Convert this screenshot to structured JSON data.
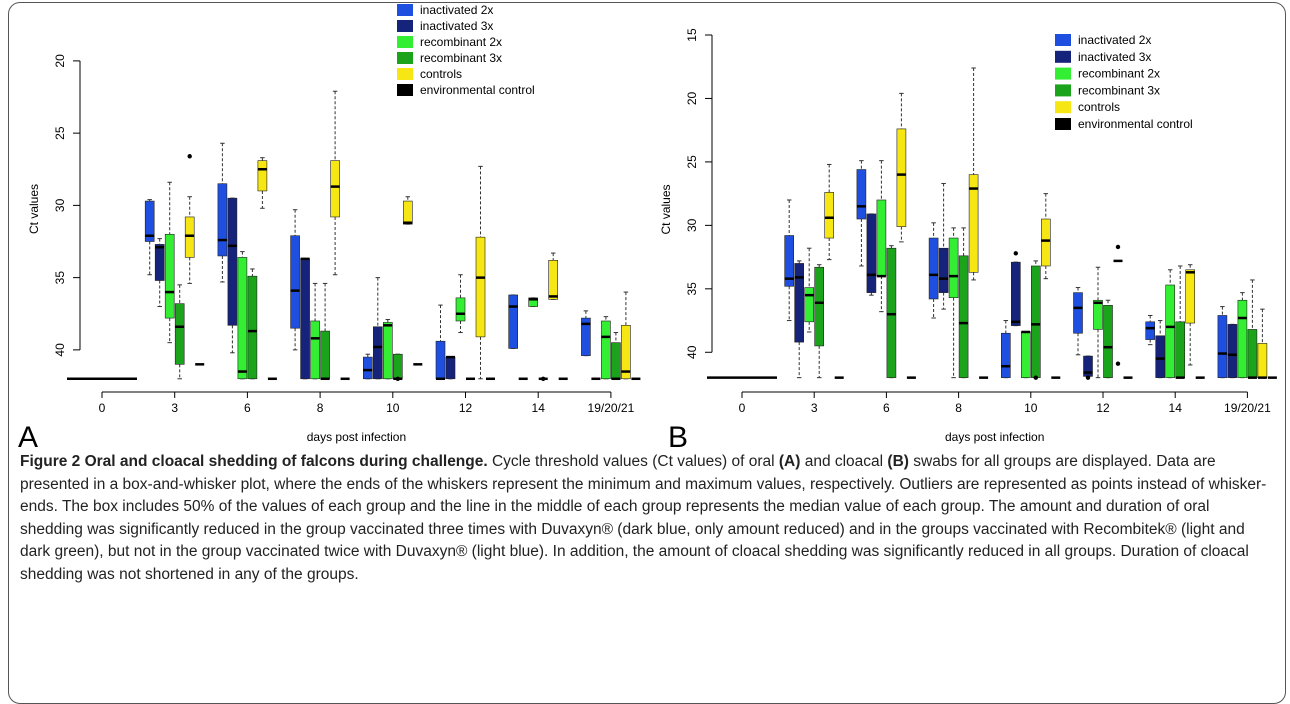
{
  "chart_data": [
    {
      "type": "box",
      "panel_label": "A",
      "xlabel": "days post infection",
      "ylabel": "Ct values",
      "categories": [
        "0",
        "3",
        "6",
        "8",
        "10",
        "12",
        "14",
        "19/20/21"
      ],
      "ylim": [
        42.5,
        18
      ],
      "yticks": [
        20,
        25,
        30,
        35,
        40
      ],
      "series": [
        {
          "name": "inactivated 2x",
          "color": "#1f4fe0",
          "values": [
            null,
            {
              "min": 29.6,
              "q1": 29.7,
              "median": 32.1,
              "q3": 32.5,
              "max": 34.8
            },
            {
              "min": 25.7,
              "q1": 28.5,
              "median": 32.4,
              "q3": 33.5,
              "max": 35.3
            },
            {
              "min": 30.3,
              "q1": 32.1,
              "median": 35.9,
              "q3": 38.5,
              "max": 40.0
            },
            {
              "min": 40.3,
              "q1": 40.5,
              "median": 41.4,
              "q3": 42,
              "max": 42
            },
            {
              "min": 36.9,
              "q1": 39.4,
              "median": 42,
              "q3": 42,
              "max": 42
            },
            {
              "min": 36.2,
              "q1": 36.2,
              "median": 37.0,
              "q3": 39.9,
              "max": 39.9
            },
            {
              "min": 37.3,
              "q1": 37.8,
              "median": 38.2,
              "q3": 40.4,
              "max": 40.4
            }
          ]
        },
        {
          "name": "inactivated 3x",
          "color": "#16237a",
          "values": [
            null,
            {
              "min": 32.3,
              "q1": 32.7,
              "median": 32.9,
              "q3": 35.2,
              "max": 37.0
            },
            {
              "min": 29.5,
              "q1": 29.5,
              "median": 32.8,
              "q3": 38.3,
              "max": 40.2
            },
            {
              "min": 33.7,
              "q1": 33.7,
              "median": 33.7,
              "q3": 42,
              "max": 42
            },
            {
              "min": 35.0,
              "q1": 38.4,
              "median": 39.8,
              "q3": 42,
              "max": 42
            },
            {
              "min": 40.5,
              "q1": 40.5,
              "median": 40.5,
              "q3": 42,
              "max": 42
            },
            {
              "min": 42,
              "q1": 42,
              "median": 42,
              "q3": 42,
              "max": 42
            },
            {
              "min": 42,
              "q1": 42,
              "median": 42,
              "q3": 42,
              "max": 42
            }
          ]
        },
        {
          "name": "recombinant 2x",
          "color": "#33ee33",
          "values": [
            null,
            {
              "min": 28.4,
              "q1": 32.0,
              "median": 36.0,
              "q3": 37.8,
              "max": 39.5
            },
            {
              "min": 33.2,
              "q1": 33.6,
              "median": 41.5,
              "q3": 42,
              "max": 42
            },
            {
              "min": 35.4,
              "q1": 38.0,
              "median": 39.2,
              "q3": 42,
              "max": 42
            },
            {
              "min": 37.9,
              "q1": 38.1,
              "median": 38.3,
              "q3": 42,
              "max": 42
            },
            {
              "min": 34.8,
              "q1": 36.4,
              "median": 37.5,
              "q3": 38.0,
              "max": 38.8
            },
            {
              "min": 36.4,
              "q1": 36.4,
              "median": 36.5,
              "q3": 37.0,
              "max": 37.0
            },
            {
              "min": 37.7,
              "q1": 38.0,
              "median": 39.1,
              "q3": 42,
              "max": 42
            }
          ]
        },
        {
          "name": "recombinant 3x",
          "color": "#1ba41b",
          "values": [
            null,
            {
              "min": 35.5,
              "q1": 36.8,
              "median": 38.4,
              "q3": 41.0,
              "max": 42
            },
            {
              "min": 34.4,
              "q1": 34.9,
              "median": 38.7,
              "q3": 42,
              "max": 42
            },
            {
              "min": 35.4,
              "q1": 38.7,
              "median": 42,
              "q3": 42,
              "max": 42
            },
            {
              "min": 40.3,
              "q1": 40.3,
              "median": 42,
              "q3": 42,
              "max": 42,
              "outliers": [
                42
              ]
            },
            {
              "min": 42,
              "q1": 42,
              "median": 42,
              "q3": 42,
              "max": 42
            },
            {
              "min": 42,
              "q1": 42,
              "median": 42,
              "q3": 42,
              "max": 42,
              "outliers": [
                42
              ]
            },
            {
              "min": 38.8,
              "q1": 39.5,
              "median": 42,
              "q3": 42,
              "max": 42
            }
          ]
        },
        {
          "name": "controls",
          "color": "#f5e614",
          "values": [
            null,
            {
              "min": 29.4,
              "q1": 30.8,
              "median": 32.1,
              "q3": 33.6,
              "max": 35.4,
              "outliers": [
                26.6
              ]
            },
            {
              "min": 26.7,
              "q1": 26.9,
              "median": 27.5,
              "q3": 29.0,
              "max": 30.2
            },
            {
              "min": 22.1,
              "q1": 26.9,
              "median": 28.7,
              "q3": 30.8,
              "max": 34.8
            },
            {
              "min": 29.4,
              "q1": 29.7,
              "median": 31.2,
              "q3": 31.3,
              "max": 31.3
            },
            {
              "min": 27.3,
              "q1": 32.2,
              "median": 35.0,
              "q3": 39.1,
              "max": 42
            },
            {
              "min": 33.3,
              "q1": 33.8,
              "median": 36.3,
              "q3": 36.5,
              "max": 36.5
            },
            {
              "min": 36.0,
              "q1": 38.3,
              "median": 41.5,
              "q3": 42,
              "max": 42
            }
          ]
        },
        {
          "name": "environmental control",
          "color": "#000000",
          "values": [
            {
              "min": 42,
              "q1": 42,
              "median": 42,
              "q3": 42,
              "max": 42
            },
            {
              "min": 41,
              "q1": 41,
              "median": 41,
              "q3": 41,
              "max": 41
            },
            {
              "min": 42,
              "q1": 42,
              "median": 42,
              "q3": 42,
              "max": 42
            },
            {
              "min": 42,
              "q1": 42,
              "median": 42,
              "q3": 42,
              "max": 42
            },
            {
              "min": 41,
              "q1": 41,
              "median": 41,
              "q3": 41,
              "max": 41
            },
            {
              "min": 42,
              "q1": 42,
              "median": 42,
              "q3": 42,
              "max": 42
            },
            {
              "min": 42,
              "q1": 42,
              "median": 42,
              "q3": 42,
              "max": 42
            },
            {
              "min": 42,
              "q1": 42,
              "median": 42,
              "q3": 42,
              "max": 42
            }
          ]
        }
      ]
    },
    {
      "type": "box",
      "panel_label": "B",
      "xlabel": "days post infection",
      "ylabel": "Ct values",
      "categories": [
        "0",
        "3",
        "6",
        "8",
        "10",
        "12",
        "14",
        "19/20/21"
      ],
      "ylim": [
        42.5,
        15
      ],
      "yticks": [
        15,
        20,
        25,
        30,
        35,
        40
      ],
      "series": [
        {
          "name": "inactivated 2x",
          "color": "#1f4fe0",
          "values": [
            null,
            {
              "min": 28.0,
              "q1": 30.8,
              "median": 34.2,
              "q3": 34.8,
              "max": 37.5
            },
            {
              "min": 24.9,
              "q1": 25.6,
              "median": 28.5,
              "q3": 29.5,
              "max": 33.2
            },
            {
              "min": 29.8,
              "q1": 31.0,
              "median": 33.9,
              "q3": 35.8,
              "max": 37.3
            },
            {
              "min": 37.5,
              "q1": 38.5,
              "median": 41.1,
              "q3": 42,
              "max": 42
            },
            {
              "min": 34.9,
              "q1": 35.3,
              "median": 36.5,
              "q3": 38.5,
              "max": 40.2
            },
            {
              "min": 37.1,
              "q1": 37.6,
              "median": 38.1,
              "q3": 39.0,
              "max": 39.4
            },
            {
              "min": 36.4,
              "q1": 37.1,
              "median": 40.1,
              "q3": 42,
              "max": 42
            }
          ]
        },
        {
          "name": "inactivated 3x",
          "color": "#16237a",
          "values": [
            null,
            {
              "min": 32.8,
              "q1": 33.0,
              "median": 34.1,
              "q3": 39.2,
              "max": 42
            },
            {
              "min": 29.1,
              "q1": 29.1,
              "median": 33.9,
              "q3": 35.3,
              "max": 35.5
            },
            {
              "min": 26.7,
              "q1": 31.8,
              "median": 34.2,
              "q3": 35.3,
              "max": 36.6
            },
            {
              "min": 32.9,
              "q1": 32.9,
              "median": 37.6,
              "q3": 37.9,
              "max": 37.9,
              "outliers": [
                32.2
              ]
            },
            {
              "min": 40.3,
              "q1": 40.3,
              "median": 41.6,
              "q3": 41.9,
              "max": 41.9,
              "outliers": [
                42
              ]
            },
            {
              "min": 37.5,
              "q1": 38.7,
              "median": 40.5,
              "q3": 42,
              "max": 42
            },
            {
              "min": 37.8,
              "q1": 37.8,
              "median": 40.2,
              "q3": 42,
              "max": 42
            }
          ]
        },
        {
          "name": "recombinant 2x",
          "color": "#33ee33",
          "values": [
            null,
            {
              "min": 31.8,
              "q1": 34.9,
              "median": 35.5,
              "q3": 37.6,
              "max": 38.4
            },
            {
              "min": 24.9,
              "q1": 28.0,
              "median": 34.0,
              "q3": 34.0,
              "max": 36.8
            },
            {
              "min": 30.2,
              "q1": 31.0,
              "median": 34.0,
              "q3": 35.7,
              "max": 42
            },
            {
              "min": 38.4,
              "q1": 38.4,
              "median": 38.4,
              "q3": 42,
              "max": 42
            },
            {
              "min": 33.3,
              "q1": 35.9,
              "median": 36.1,
              "q3": 38.2,
              "max": 42
            },
            {
              "min": 33.5,
              "q1": 34.7,
              "median": 38.0,
              "q3": 42,
              "max": 42
            },
            {
              "min": 35.3,
              "q1": 35.9,
              "median": 37.3,
              "q3": 42,
              "max": 42
            }
          ]
        },
        {
          "name": "recombinant 3x",
          "color": "#1ba41b",
          "values": [
            null,
            {
              "min": 33.1,
              "q1": 33.3,
              "median": 36.1,
              "q3": 39.5,
              "max": 42
            },
            {
              "min": 31.6,
              "q1": 31.8,
              "median": 37.0,
              "q3": 42,
              "max": 42
            },
            {
              "min": 30.2,
              "q1": 32.4,
              "median": 37.7,
              "q3": 42,
              "max": 42
            },
            {
              "min": 32.8,
              "q1": 33.2,
              "median": 37.8,
              "q3": 42,
              "max": 42,
              "outliers": [
                42
              ]
            },
            {
              "min": 35.9,
              "q1": 36.3,
              "median": 39.6,
              "q3": 42,
              "max": 42
            },
            {
              "min": 33.2,
              "q1": 37.6,
              "median": 42,
              "q3": 42,
              "max": 42
            },
            {
              "min": 34.3,
              "q1": 38.2,
              "median": 42,
              "q3": 42,
              "max": 42
            }
          ]
        },
        {
          "name": "controls",
          "color": "#f5e614",
          "values": [
            null,
            {
              "min": 25.2,
              "q1": 27.4,
              "median": 29.4,
              "q3": 31.0,
              "max": 32.7
            },
            {
              "min": 19.6,
              "q1": 22.4,
              "median": 26.0,
              "q3": 30.1,
              "max": 31.3
            },
            {
              "min": 17.6,
              "q1": 26.0,
              "median": 27.1,
              "q3": 33.7,
              "max": 34.3
            },
            {
              "min": 27.5,
              "q1": 29.5,
              "median": 31.2,
              "q3": 33.2,
              "max": 34.2
            },
            {
              "min": 32.8,
              "q1": 32.8,
              "median": 32.8,
              "q3": 32.8,
              "max": 32.8,
              "outliers": [
                31.7,
                40.9
              ]
            },
            {
              "min": 33.1,
              "q1": 33.5,
              "median": 33.7,
              "q3": 37.7,
              "max": 41.0
            },
            {
              "min": 36.6,
              "q1": 39.3,
              "median": 42,
              "q3": 42,
              "max": 42
            }
          ]
        },
        {
          "name": "environmental control",
          "color": "#000000",
          "values": [
            {
              "min": 42,
              "q1": 42,
              "median": 42,
              "q3": 42,
              "max": 42
            },
            {
              "min": 42,
              "q1": 42,
              "median": 42,
              "q3": 42,
              "max": 42
            },
            {
              "min": 42,
              "q1": 42,
              "median": 42,
              "q3": 42,
              "max": 42
            },
            {
              "min": 42,
              "q1": 42,
              "median": 42,
              "q3": 42,
              "max": 42
            },
            {
              "min": 42,
              "q1": 42,
              "median": 42,
              "q3": 42,
              "max": 42
            },
            {
              "min": 42,
              "q1": 42,
              "median": 42,
              "q3": 42,
              "max": 42
            },
            {
              "min": 42,
              "q1": 42,
              "median": 42,
              "q3": 42,
              "max": 42
            },
            {
              "min": 42,
              "q1": 42,
              "median": 42,
              "q3": 42,
              "max": 42
            }
          ]
        }
      ]
    }
  ],
  "caption": [
    {
      "text": "Figure 2 Oral and cloacal shedding of falcons during challenge.",
      "bold": true
    },
    {
      "text": " Cycle threshold values (Ct values) of oral ",
      "bold": false
    },
    {
      "text": "(A)",
      "bold": true
    },
    {
      "text": " and cloacal ",
      "bold": false
    },
    {
      "text": "(B)",
      "bold": true
    },
    {
      "text": " swabs for all groups are displayed. Data are presented in a box-and-whisker plot, where the ends of the whiskers represent the minimum and maximum values, respectively. Outliers are represented as points instead of whisker-ends. The box includes 50% of the values of each group and the line in the middle of each group represents the median value of each group. The amount and duration of oral shedding was significantly reduced in the group vaccinated three times with Duvaxyn® (dark blue, only amount reduced) and in the groups vaccinated with Recombitek® (light and dark green), but not in the group vaccinated twice with Duvaxyn® (light blue). In addition, the amount of cloacal shedding was significantly reduced in all groups. Duration of cloacal shedding was not shortened in any of the groups.",
      "bold": false
    }
  ]
}
